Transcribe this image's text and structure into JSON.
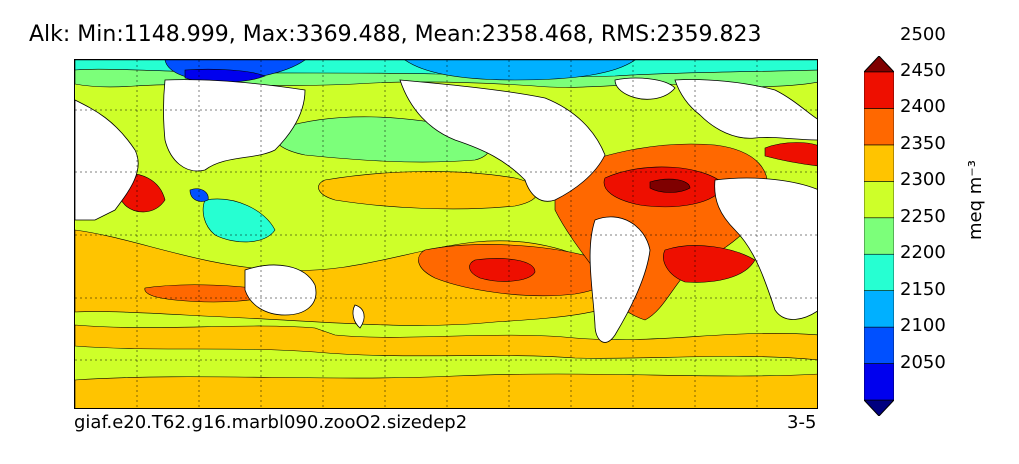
{
  "title": "Alk: Min:1148.999, Max:3369.488, Mean:2358.468, RMS:2359.823",
  "case_name": "giaf.e20.T62.g16.marbl090.zooO2.sizedep2",
  "period": "3-5",
  "colorbar": {
    "unit": "meq m⁻³",
    "ticks": [
      "2050",
      "2100",
      "2150",
      "2200",
      "2250",
      "2300",
      "2350",
      "2400",
      "2450",
      "2500"
    ],
    "colors": [
      "#00007f",
      "#0000ee",
      "#0050ff",
      "#00b0ff",
      "#26ffd2",
      "#7cff7a",
      "#ceff29",
      "#ffc400",
      "#ff6800",
      "#ee0f00",
      "#7f0000"
    ]
  },
  "map": {
    "land_color": "#ffffff",
    "grid": true,
    "projection": "global"
  }
}
